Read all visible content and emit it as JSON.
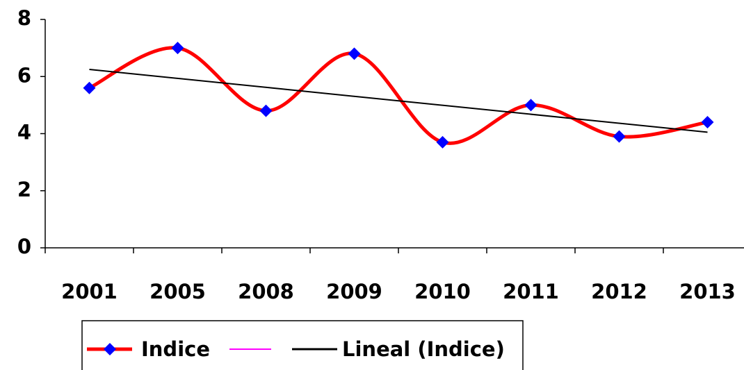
{
  "chart_data": {
    "type": "line",
    "categories": [
      "2001",
      "2005",
      "2008",
      "2009",
      "2010",
      "2011",
      "2012",
      "2013"
    ],
    "series": [
      {
        "name": "Indice",
        "color": "#ff0000",
        "marker_color": "#0000ff",
        "values": [
          5.6,
          7.0,
          4.8,
          6.8,
          3.7,
          5.0,
          3.9,
          4.4
        ]
      }
    ],
    "trendline": {
      "type": "linear",
      "name": "Lineal (Indice)",
      "color": "#000000"
    },
    "ylim": [
      0,
      8
    ],
    "yticks": [
      0,
      2,
      4,
      6,
      8
    ],
    "smooth": true,
    "grid": false
  }
}
